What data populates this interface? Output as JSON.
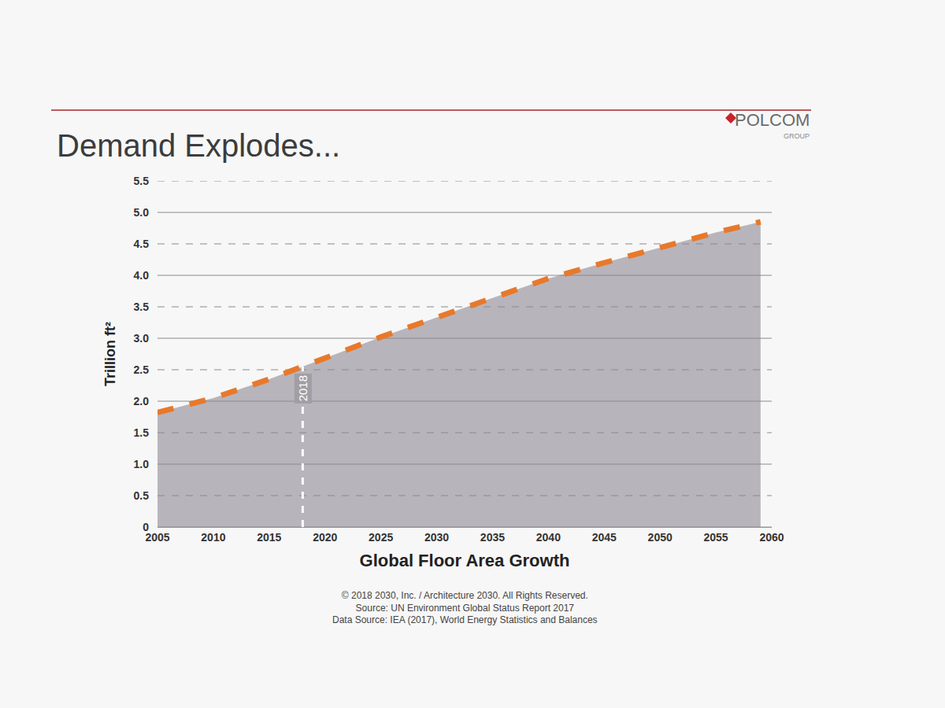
{
  "chart_data": {
    "type": "area",
    "title": "Demand Explodes...",
    "brand": "POLCOM",
    "brand_subtitle": "GROUP",
    "x_label": "Global Floor Area Growth",
    "y_label": "Trillion ft²",
    "notes": [
      "© 2018 2030, Inc. / Architecture 2030. All Rights Reserved.",
      "Source: UN Environment Global Status Report 2017",
      "Data Source: IEA (2017), World Energy Statistics and Balances"
    ],
    "x": [
      2005,
      2010,
      2015,
      2018,
      2020,
      2025,
      2030,
      2035,
      2040,
      2045,
      2050,
      2055,
      2059
    ],
    "values": [
      1.82,
      2.05,
      2.35,
      2.55,
      2.7,
      3.02,
      3.33,
      3.65,
      3.95,
      4.2,
      4.45,
      4.68,
      4.85
    ],
    "color": "#e8792b",
    "line_style": "dashed",
    "xlim": [
      2005,
      2060
    ],
    "xticks": [
      2005,
      2010,
      2015,
      2020,
      2025,
      2030,
      2035,
      2040,
      2045,
      2050,
      2055,
      2060
    ],
    "ylim": [
      0,
      5.5
    ],
    "yticks": [
      0,
      0.5,
      {
        "value": 1,
        "label": "1.0"
      },
      1.5,
      {
        "value": 2,
        "label": "2.0"
      },
      2.5,
      {
        "value": 3,
        "label": "3.0"
      },
      3.5,
      {
        "value": 4,
        "label": "4.0"
      },
      4.5,
      {
        "value": 5,
        "label": "5.0"
      },
      5.5
    ],
    "grid": true,
    "annotations": [
      {
        "text": "2018",
        "x": 2018,
        "y": 2.55
      }
    ]
  }
}
